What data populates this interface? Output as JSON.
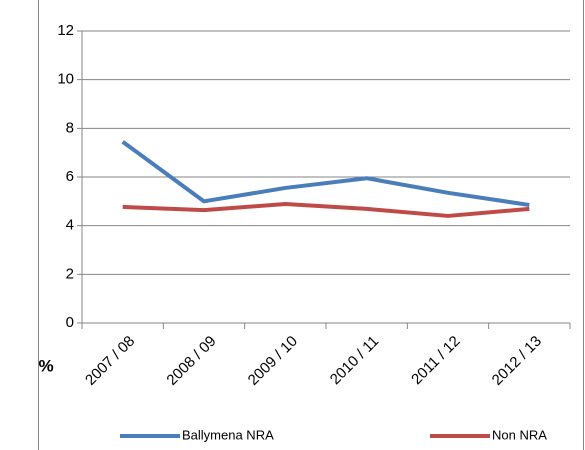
{
  "chart_data": {
    "type": "line",
    "categories": [
      "2007 / 08",
      "2008 / 09",
      "2009 / 10",
      "2010 / 11",
      "2011 / 12",
      "2012 / 13"
    ],
    "series": [
      {
        "name": "Ballymena NRA",
        "color": "#4a7ebb",
        "values": [
          7.45,
          5.0,
          5.55,
          5.95,
          5.35,
          4.85
        ]
      },
      {
        "name": "Non NRA",
        "color": "#be4b48",
        "values": [
          4.77,
          4.64,
          4.89,
          4.69,
          4.4,
          4.69
        ]
      }
    ],
    "ylabel": "%",
    "ylim": [
      0,
      12
    ],
    "yticks": [
      0,
      2,
      4,
      6,
      8,
      10,
      12
    ],
    "grid": true,
    "legend": "bottom"
  }
}
